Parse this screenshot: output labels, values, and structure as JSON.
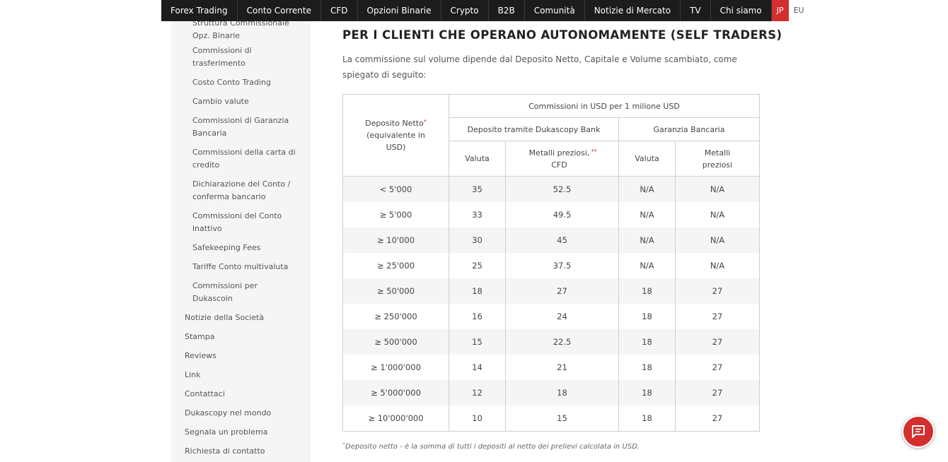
{
  "nav": {
    "items": [
      "Forex Trading",
      "Conto Corrente",
      "CFD",
      "Opzioni Binarie",
      "Crypto",
      "B2B",
      "Comunità",
      "Notizie di Mercato",
      "TV",
      "Chi siamo"
    ],
    "lang_jp": "JP",
    "lang_eu": "EU",
    "colors": {
      "bar": "#1c1c1c",
      "active_lang": "#d32f2f"
    }
  },
  "sidebar": {
    "sub_items": [
      "Struttura Commissionale Opz. Binarie",
      "Commissioni di trasferimento",
      "Costo Conto Trading",
      "Cambio valute",
      "Commissioni di Garanzia Bancaria",
      "Commissioni della carta di credito",
      "Dichiarazione del Conto / conferma bancario",
      "Commissioni del Conto inattivo",
      "Safekeeping Fees",
      "Tariffe Conto multivaluta",
      "Commissioni per Dukascoin"
    ],
    "main_items": [
      "Notizie della Società",
      "Stampa",
      "Reviews",
      "Link",
      "Contattaci",
      "Dukascopy nel mondo",
      "Segnala un problema",
      "Richiesta di contatto"
    ]
  },
  "main": {
    "heading": "PER I CLIENTI CHE OPERANO AUTONOMAMENTE (SELF TRADERS)",
    "intro": "La commissione sul volume dipende dal Deposito Netto, Capitale e Volume scambiato, come spiegato di seguito:",
    "table": {
      "col_deposit": "Deposito Netto",
      "col_deposit_sub": "(equivalente in USD)",
      "asterisk": "*",
      "double_asterisk": "**",
      "header_commission": "Commissioni in USD per 1 milione USD",
      "group_dukascopy": "Deposito tramite Dukascopy Bank",
      "group_guarantee": "Garanzia Bancaria",
      "sub_valuta": "Valuta",
      "sub_metalli_cfd": "Metalli preziosi, CFD",
      "sub_metalli": "Metalli preziosi",
      "rows": [
        [
          "< 5'000",
          "35",
          "52.5",
          "N/A",
          "N/A"
        ],
        [
          "≥ 5'000",
          "33",
          "49.5",
          "N/A",
          "N/A"
        ],
        [
          "≥ 10'000",
          "30",
          "45",
          "N/A",
          "N/A"
        ],
        [
          "≥ 25'000",
          "25",
          "37.5",
          "N/A",
          "N/A"
        ],
        [
          "≥ 50'000",
          "18",
          "27",
          "18",
          "27"
        ],
        [
          "≥ 250'000",
          "16",
          "24",
          "18",
          "27"
        ],
        [
          "≥ 500'000",
          "15",
          "22.5",
          "18",
          "27"
        ],
        [
          "≥ 1'000'000",
          "14",
          "21",
          "18",
          "27"
        ],
        [
          "≥ 5'000'000",
          "12",
          "18",
          "18",
          "27"
        ],
        [
          "≥ 10'000'000",
          "10",
          "15",
          "18",
          "27"
        ]
      ]
    },
    "footnote": "Deposito netto - è la somma di tutti i depositi al netto dei prelievi calcolata in USD."
  },
  "chat": {
    "icon": "chat-icon",
    "color": "#d32f2f"
  }
}
